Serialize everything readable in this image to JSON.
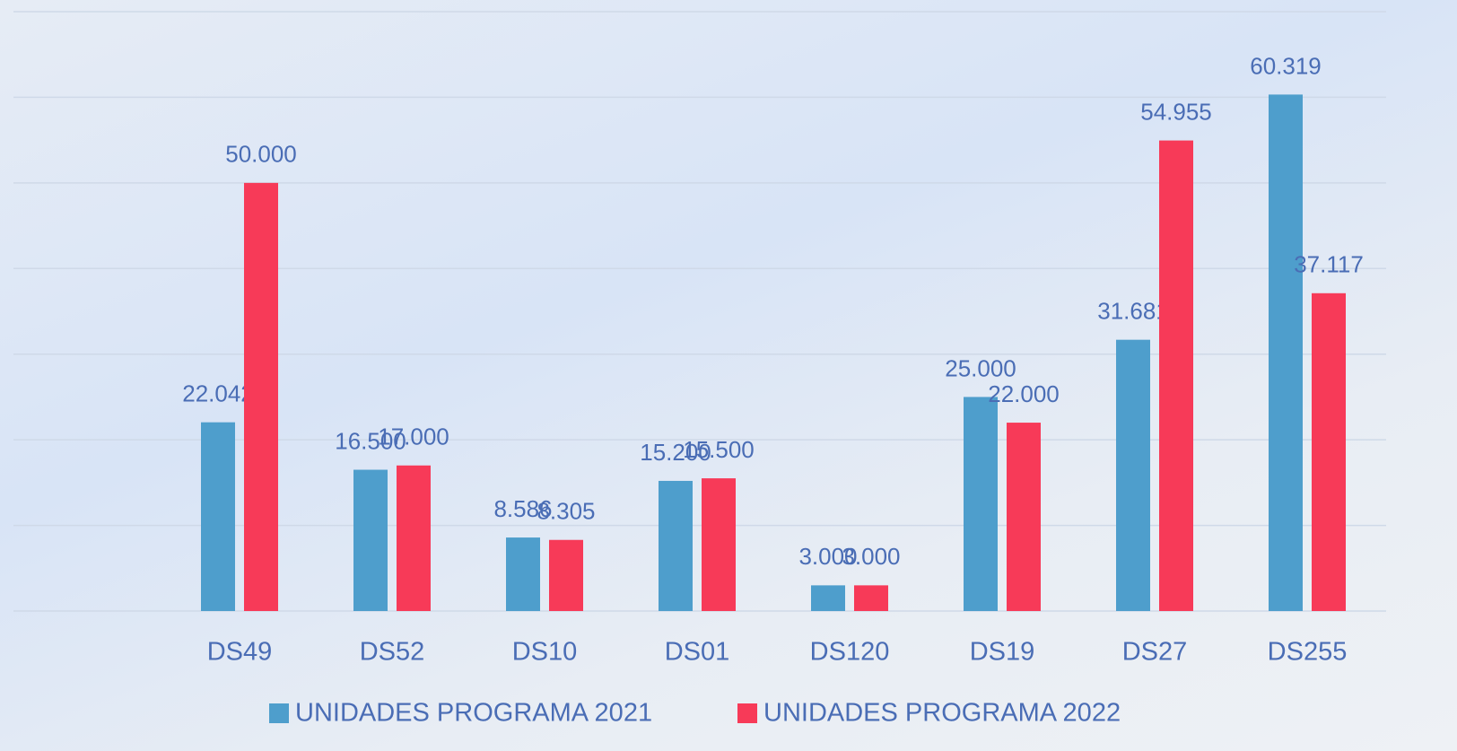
{
  "chart_data": {
    "type": "bar",
    "categories": [
      "DS49",
      "DS52",
      "DS10",
      "DS01",
      "DS120",
      "DS19",
      "DS27",
      "DS255"
    ],
    "series": [
      {
        "name": "UNIDADES PROGRAMA 2021",
        "color": "#4e9ecc",
        "values": [
          22042,
          16500,
          8586,
          15200,
          3000,
          25000,
          31681,
          60319
        ],
        "value_labels": [
          "22.042",
          "16.500",
          "8.586",
          "15.200",
          "3.000",
          "25.000",
          "31.681",
          "60.319"
        ]
      },
      {
        "name": "UNIDADES PROGRAMA 2022",
        "color": "#f73a58",
        "values": [
          50000,
          17000,
          8305,
          15500,
          3000,
          22000,
          54955,
          37117
        ],
        "value_labels": [
          "50.000",
          "17.000",
          "8.305",
          "15.500",
          "3.000",
          "22.000",
          "54.955",
          "37.117"
        ]
      }
    ],
    "ylim": [
      0,
      70000
    ],
    "yticks": [
      0,
      10000,
      20000,
      30000,
      40000,
      50000,
      60000,
      70000
    ],
    "grid": true
  }
}
